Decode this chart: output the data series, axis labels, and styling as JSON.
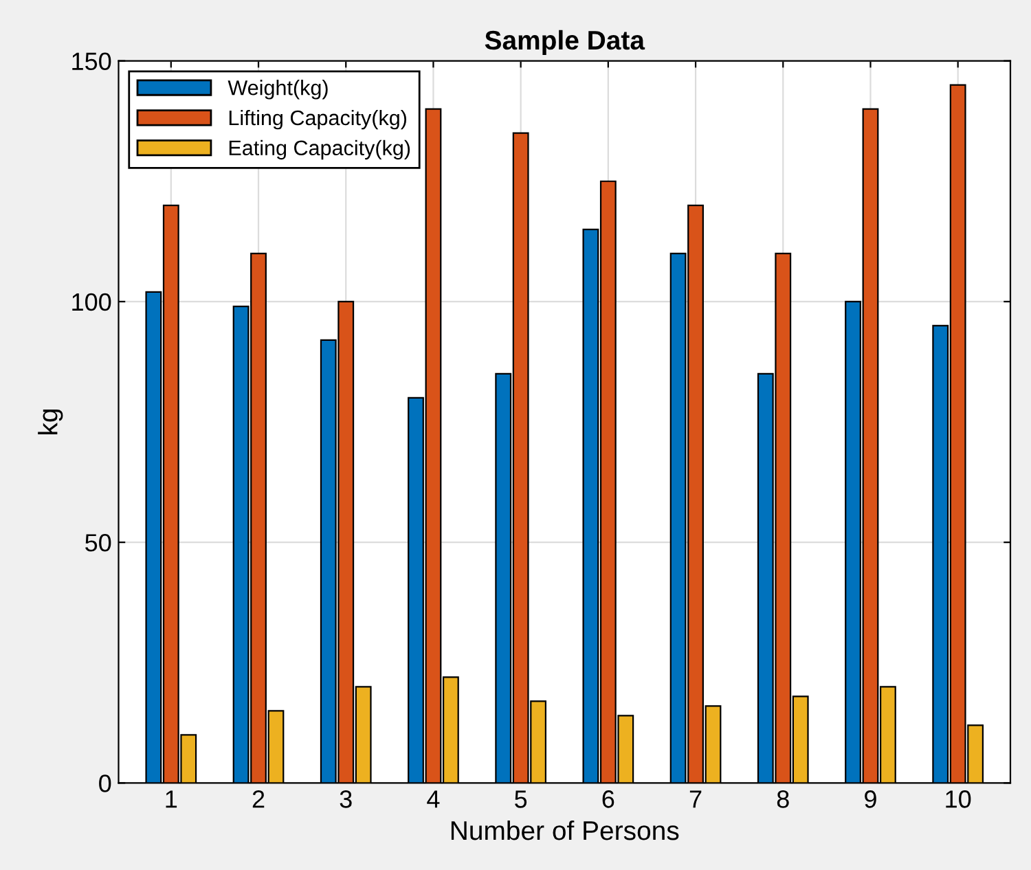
{
  "chart_data": {
    "type": "bar",
    "title": "Sample Data",
    "xlabel": "Number of Persons",
    "ylabel": "kg",
    "categories": [
      "1",
      "2",
      "3",
      "4",
      "5",
      "6",
      "7",
      "8",
      "9",
      "10"
    ],
    "series": [
      {
        "name": "Weight(kg)",
        "color": "#0072bd",
        "values": [
          102,
          99,
          92,
          80,
          85,
          115,
          110,
          85,
          100,
          95
        ]
      },
      {
        "name": "Lifting Capacity(kg)",
        "color": "#d95319",
        "values": [
          120,
          110,
          100,
          140,
          135,
          125,
          120,
          110,
          140,
          145
        ]
      },
      {
        "name": "Eating Capacity(kg)",
        "color": "#edb120",
        "values": [
          10,
          15,
          20,
          22,
          17,
          14,
          16,
          18,
          20,
          12
        ]
      }
    ],
    "ylim": [
      0,
      150
    ],
    "yticks": [
      0,
      50,
      100,
      150
    ],
    "grid": true,
    "legend": "top left"
  }
}
